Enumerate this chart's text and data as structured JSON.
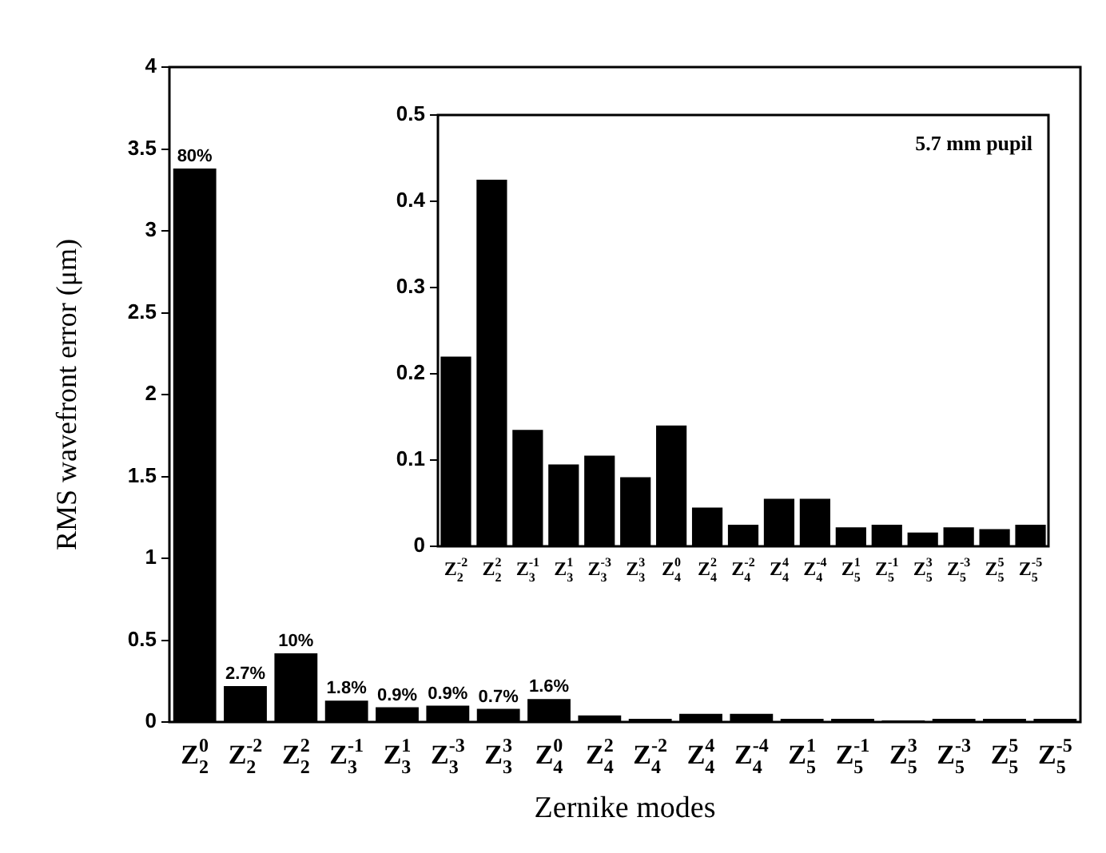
{
  "chart_data": [
    {
      "type": "bar",
      "xlabel": "Zernike modes",
      "ylabel": "RMS wavefront error (μm)",
      "categories": [
        "Z$_{2}$$^{0}$",
        "Z$_{2}$$^{-2}$",
        "Z$_{2}$$^{2}$",
        "Z$_{3}$$^{-1}$",
        "Z$_{3}$$^{1}$",
        "Z$_{3}$$^{-3}$",
        "Z$_{3}$$^{3}$",
        "Z$_{4}$$^{0}$",
        "Z$_{4}$$^{2}$",
        "Z$_{4}$$^{-2}$",
        "Z$_{4}$$^{4}$",
        "Z$_{4}$$^{-4}$",
        "Z$_{5}$$^{1}$",
        "Z$_{5}$$^{-1}$",
        "Z$_{5}$$^{3}$",
        "Z$_{5}$$^{-3}$",
        "Z$_{5}$$^{5}$",
        "Z$_{5}$$^{-5}$"
      ],
      "values": [
        3.38,
        0.22,
        0.42,
        0.13,
        0.09,
        0.1,
        0.08,
        0.14,
        0.04,
        0.02,
        0.05,
        0.05,
        0.02,
        0.02,
        0.01,
        0.02,
        0.02,
        0.02
      ],
      "annotations": [
        {
          "text": "80%",
          "x": "Z$_{2}$$^{0}$",
          "y": 3.38
        },
        {
          "text": "2.7%",
          "x": "Z$_{2}$$^{-2}$",
          "y": 0.22
        },
        {
          "text": "10%",
          "x": "Z$_{2}$$^{2}$",
          "y": 0.42
        },
        {
          "text": "1.8%",
          "x": "Z$_{3}$$^{-1}$",
          "y": 0.13
        },
        {
          "text": "0.9%",
          "x": "Z$_{3}$$^{1}$",
          "y": 0.09
        },
        {
          "text": "0.9%",
          "x": "Z$_{3}$$^{-3}$",
          "y": 0.1
        },
        {
          "text": "0.7%",
          "x": "Z$_{3}$$^{3}$",
          "y": 0.08
        },
        {
          "text": "1.6%",
          "x": "Z$_{4}$$^{0}$",
          "y": 0.14
        }
      ],
      "color": "#000000",
      "ylim": [
        0,
        4
      ],
      "yticks": [
        0,
        0.5,
        1,
        1.5,
        2,
        2.5,
        3,
        3.5,
        4
      ]
    },
    {
      "type": "bar",
      "annotations": [
        "5.7 mm pupil"
      ],
      "categories": [
        "Z$_{2}$$^{-2}$",
        "Z$_{2}$$^{2}$",
        "Z$_{3}$$^{-1}$",
        "Z$_{3}$$^{1}$",
        "Z$_{3}$$^{-3}$",
        "Z$_{3}$$^{3}$",
        "Z$_{4}$$^{0}$",
        "Z$_{4}$$^{2}$",
        "Z$_{4}$$^{-2}$",
        "Z$_{4}$$^{4}$",
        "Z$_{4}$$^{-4}$",
        "Z$_{5}$$^{1}$",
        "Z$_{5}$$^{-1}$",
        "Z$_{5}$$^{3}$",
        "Z$_{5}$$^{-3}$",
        "Z$_{5}$$^{5}$",
        "Z$_{5}$$^{-5}$"
      ],
      "values": [
        0.22,
        0.425,
        0.135,
        0.095,
        0.105,
        0.08,
        0.14,
        0.045,
        0.025,
        0.055,
        0.055,
        0.022,
        0.025,
        0.016,
        0.022,
        0.02,
        0.025
      ],
      "color": "#000000",
      "ylim": [
        0,
        0.5
      ],
      "yticks": [
        0,
        0.1,
        0.2,
        0.3,
        0.4,
        0.5
      ]
    }
  ]
}
